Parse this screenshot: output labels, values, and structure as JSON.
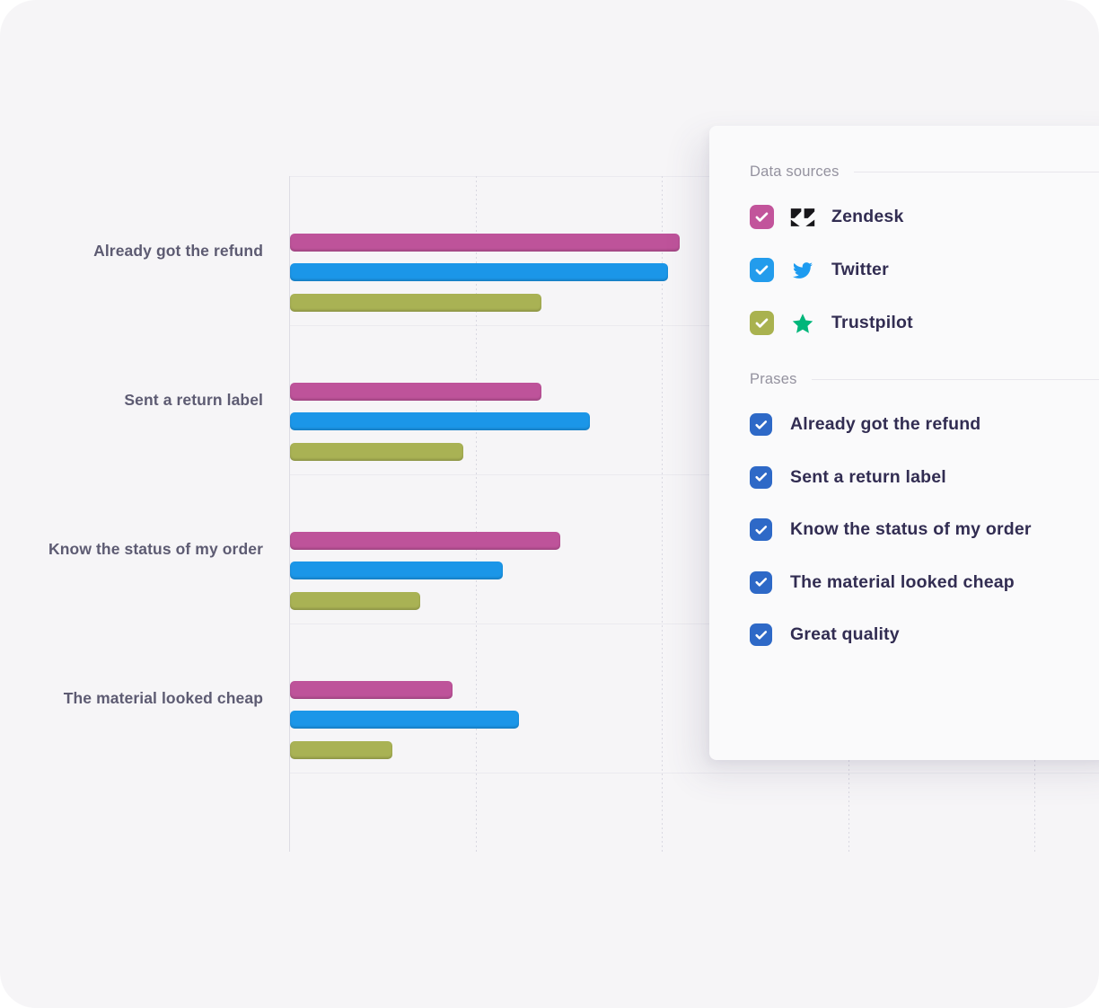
{
  "chart_data": {
    "type": "bar",
    "orientation": "horizontal",
    "title": "",
    "xlabel": "",
    "ylabel": "",
    "categories": [
      "Already got the refund",
      "Sent a return label",
      "Know the status of my order",
      "The material looked cheap"
    ],
    "series": [
      {
        "name": "Zendesk",
        "color": "#be539a",
        "values": [
          2.09,
          1.35,
          1.45,
          0.87
        ]
      },
      {
        "name": "Twitter",
        "color": "#1b96e8",
        "values": [
          2.03,
          1.61,
          1.14,
          1.23
        ]
      },
      {
        "name": "Trustpilot",
        "color": "#a9b254",
        "values": [
          1.35,
          0.93,
          0.7,
          0.55
        ]
      }
    ],
    "value_axis": {
      "tick_labels_visible": false,
      "unit": "gridline-units",
      "gridline_positions": [
        0,
        1,
        2,
        3,
        4
      ],
      "xlim": [
        0,
        4.35
      ],
      "grid_style": "dotted-vertical, solid-horizontal-band-separators"
    },
    "legend_position": "right-panel-checkboxes",
    "extra_category_no_bars_visible": "Great quality"
  },
  "panel": {
    "data_sources": {
      "title": "Data sources",
      "items": [
        {
          "label": "Zendesk",
          "checked": true,
          "checkbox_color": "#c2549b",
          "icon": "zendesk-icon",
          "icon_color": "#17161a"
        },
        {
          "label": "Twitter",
          "checked": true,
          "checkbox_color": "#239cec",
          "icon": "twitter-icon",
          "icon_color": "#1d9bf0"
        },
        {
          "label": "Trustpilot",
          "checked": true,
          "checkbox_color": "#a9b24f",
          "icon": "trustpilot-icon",
          "icon_color": "#00b67a"
        }
      ]
    },
    "phrases": {
      "title": "Prases",
      "items": [
        {
          "label": "Already got the refund",
          "checked": true,
          "checkbox_color": "#2e69c7"
        },
        {
          "label": "Sent a return label",
          "checked": true,
          "checkbox_color": "#2e69c7"
        },
        {
          "label": "Know the status of my order",
          "checked": true,
          "checkbox_color": "#2e69c7"
        },
        {
          "label": "The material looked cheap",
          "checked": true,
          "checkbox_color": "#2e69c7"
        },
        {
          "label": "Great quality",
          "checked": true,
          "checkbox_color": "#2e69c7"
        }
      ]
    }
  },
  "colors": {
    "page_background": "#ffffff",
    "canvas_background": "#f6f5f7",
    "panel_background": "#fafafb",
    "grid_horizontal": "#ebeaef",
    "grid_vertical_dotted": "#d9d8e1",
    "axis_line": "#dddce4",
    "category_label_text": "#5d5b72",
    "section_title_text": "#94929f",
    "item_label_text": "#322d52",
    "checkmark": "#ffffff"
  }
}
